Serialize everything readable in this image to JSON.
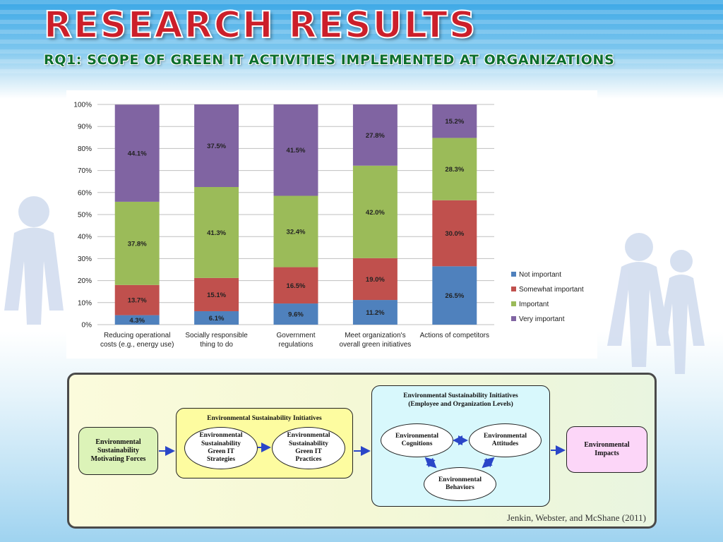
{
  "title": "RESEARCH RESULTS",
  "subtitle": "RQ1: SCOPE OF GREEN IT ACTIVITIES IMPLEMENTED AT ORGANIZATIONS",
  "colors": {
    "title": "#cc1f2a",
    "subtitle": "#0c6e2c",
    "not_important": "#4f81bd",
    "somewhat_important": "#c0504d",
    "important": "#9bbb59",
    "very_important": "#8064a2"
  },
  "chart_data": {
    "type": "bar",
    "stacked": true,
    "percent": true,
    "categories": [
      [
        "Reducing operational",
        "costs (e.g., energy use)"
      ],
      [
        "Socially responsible",
        "thing to do"
      ],
      [
        "Government",
        "regulations"
      ],
      [
        "Meet organization's",
        "overall green initiatives"
      ],
      [
        "Actions of competitors"
      ]
    ],
    "series": [
      {
        "name": "Not important",
        "color": "#4f81bd",
        "values": [
          4.3,
          6.1,
          9.6,
          11.2,
          26.5
        ],
        "labels": [
          "4.3%",
          "6.1%",
          "9.6%",
          "11.2%",
          "26.5%"
        ]
      },
      {
        "name": "Somewhat important",
        "color": "#c0504d",
        "values": [
          13.7,
          15.1,
          16.5,
          19.0,
          30.0
        ],
        "labels": [
          "13.7%",
          "15.1%",
          "16.5%",
          "19.0%",
          "30.0%"
        ]
      },
      {
        "name": "Important",
        "color": "#9bbb59",
        "values": [
          37.8,
          41.3,
          32.4,
          42.0,
          28.3
        ],
        "labels": [
          "37.8%",
          "41.3%",
          "32.4%",
          "42.0%",
          "28.3%"
        ]
      },
      {
        "name": "Very important",
        "color": "#8064a2",
        "values": [
          44.1,
          37.5,
          41.5,
          27.8,
          15.2
        ],
        "labels": [
          "44.1%",
          "37.5%",
          "41.5%",
          "27.8%",
          "15.2%"
        ]
      }
    ],
    "ylim": [
      0,
      100
    ],
    "yticks": [
      "0%",
      "10%",
      "20%",
      "30%",
      "40%",
      "50%",
      "60%",
      "70%",
      "80%",
      "90%",
      "100%"
    ],
    "legend_position": "right",
    "grid": true
  },
  "diagram": {
    "motivating": "Environmental\nSustainability\nMotivating Forces",
    "initiatives_title": "Environmental Sustainability Initiatives",
    "strategies": "Environmental\nSustainability\nGreen IT\nStrategies",
    "practices": "Environmental\nSustainability\nGreen IT\nPractices",
    "levels_title": "Environmental Sustainability Initiatives\n(Employee and Organization Levels)",
    "cognitions": "Environmental\nCognitions",
    "attitudes": "Environmental\nAttitudes",
    "behaviors": "Environmental\nBehaviors",
    "impacts": "Environmental\nImpacts",
    "citation": "Jenkin, Webster, and McShane (2011)"
  }
}
